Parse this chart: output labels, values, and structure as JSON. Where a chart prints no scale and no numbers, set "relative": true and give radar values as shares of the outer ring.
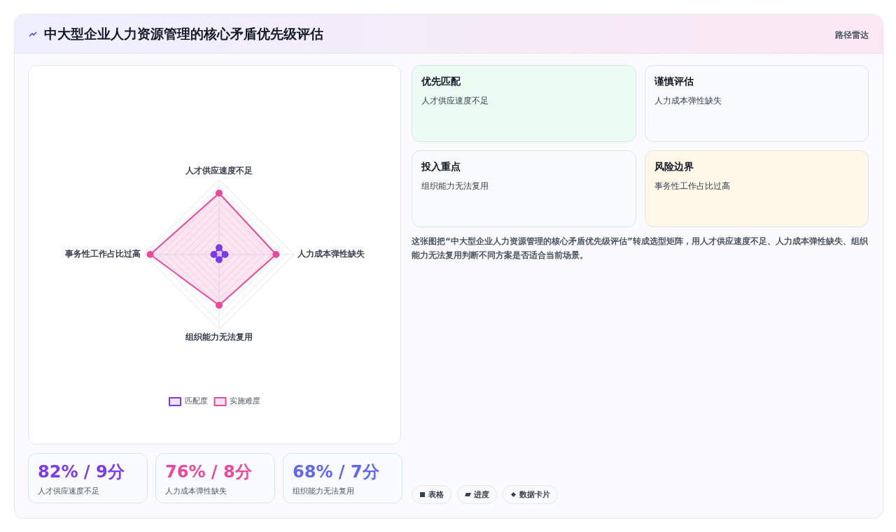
{
  "chart_data": [
    {
      "type": "radar",
      "title": "中大型企业人力资源管理的核心矛盾优先级评估",
      "categories": [
        "人才供应速度不足",
        "人力成本弹性缺失",
        "组织能力无法复用",
        "事务性工作占比过高"
      ],
      "relative": true,
      "legend": "bottom",
      "marker": "circle",
      "series": [
        {
          "name": "匹配度",
          "color": "#7c3aed",
          "values": [
            0.09,
            0.08,
            0.07,
            0.07
          ]
        },
        {
          "name": "实施难度",
          "color": "#ec4899",
          "values": [
            0.82,
            0.76,
            0.68,
            0.92
          ]
        }
      ]
    },
    {
      "type": "other",
      "categories": [
        "优先匹配",
        "谨慎评估",
        "投入重点",
        "风险边界"
      ],
      "value_labels": [
        "人才供应速度不足",
        "人力成本弹性缺失",
        "组织能力无法复用",
        "事务性工作占比过高"
      ],
      "colors": [
        "#ecfdf3",
        "#f8fafc",
        "#f8fafc",
        "#fff7e8"
      ],
      "annotations": [
        "路径雷达",
        "这张图把“中大型企业人力资源管理的核心矛盾优先级评估”转成选型矩阵，用人才供应速度不足、人力成本弹性缺失、组织能力无法复用判断不同方案是否适合当前场景。",
        "表格",
        "进度",
        "数据卡片"
      ]
    },
    {
      "type": "other",
      "categories": [
        "人才供应速度不足",
        "人力成本弹性缺失",
        "组织能力无法复用"
      ],
      "value_labels": [
        "82% / 9分",
        "76% / 8分",
        "68% / 7分"
      ]
    }
  ]
}
